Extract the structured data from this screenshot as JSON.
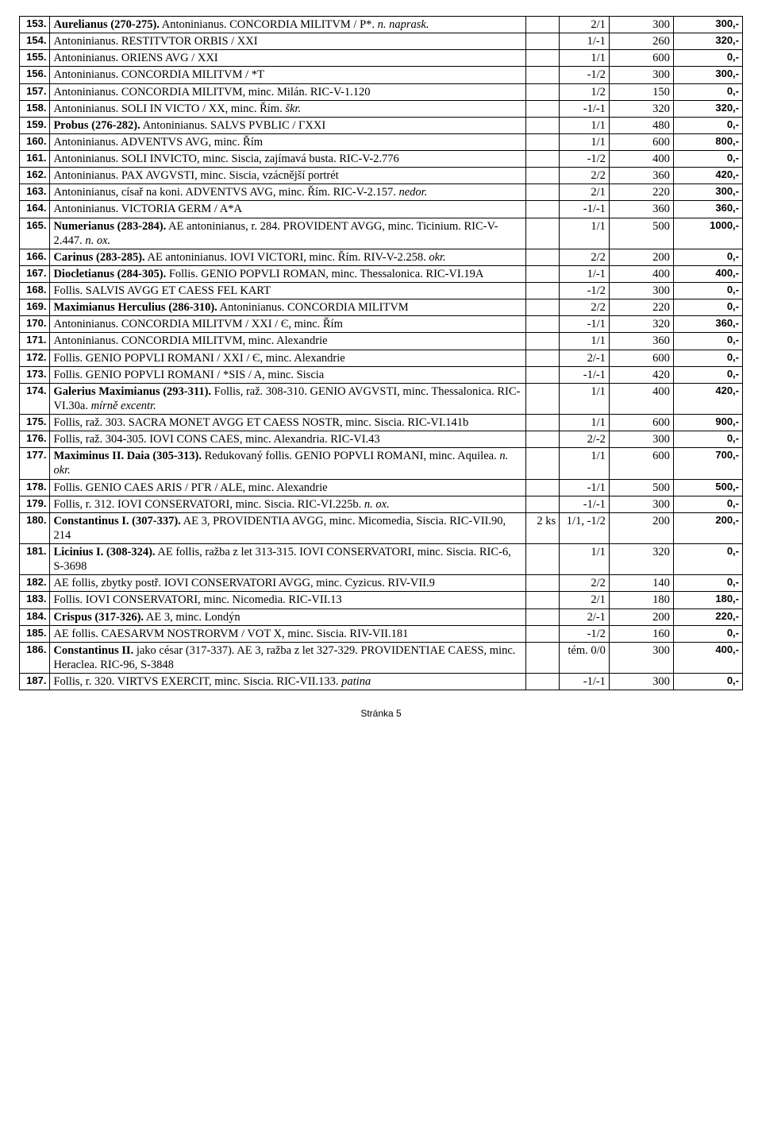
{
  "footer": "Stránka 5",
  "columns": [
    "num",
    "desc",
    "qty",
    "grade",
    "est",
    "hammer"
  ],
  "rows": [
    {
      "num": "153.",
      "desc": "<b>Aurelianus (270-275).</b> Antoninianus. CONCORDIA MILITVM / P*. <i>n. naprask.</i>",
      "qty": "",
      "grade": "2/1",
      "est": "300",
      "ham": "300,-"
    },
    {
      "num": "154.",
      "desc": "Antoninianus. RESTITVTOR ORBIS / XXI",
      "qty": "",
      "grade": "1/-1",
      "est": "260",
      "ham": "320,-"
    },
    {
      "num": "155.",
      "desc": "Antoninianus. ORIENS AVG / XXI",
      "qty": "",
      "grade": "1/1",
      "est": "600",
      "ham": "0,-"
    },
    {
      "num": "156.",
      "desc": "Antoninianus. CONCORDIA MILITVM / *T",
      "qty": "",
      "grade": "-1/2",
      "est": "300",
      "ham": "300,-"
    },
    {
      "num": "157.",
      "desc": "Antoninianus. CONCORDIA MILITVM, minc. Milán. RIC-V-1.120",
      "qty": "",
      "grade": "1/2",
      "est": "150",
      "ham": "0,-"
    },
    {
      "num": "158.",
      "desc": "Antoninianus. SOLI IN VICTO / XX, minc. Řím. <i>škr.</i>",
      "qty": "",
      "grade": "-1/-1",
      "est": "320",
      "ham": "320,-"
    },
    {
      "num": "159.",
      "desc": "<b>Probus (276-282).</b> Antoninianus. SALVS PVBLIC / ΓXXI",
      "qty": "",
      "grade": "1/1",
      "est": "480",
      "ham": "0,-"
    },
    {
      "num": "160.",
      "desc": "Antoninianus. ADVENTVS AVG, minc. Řím",
      "qty": "",
      "grade": "1/1",
      "est": "600",
      "ham": "800,-"
    },
    {
      "num": "161.",
      "desc": "Antoninianus. SOLI INVICTO, minc. Siscia, zajímavá busta. RIC-V-2.776",
      "qty": "",
      "grade": "-1/2",
      "est": "400",
      "ham": "0,-"
    },
    {
      "num": "162.",
      "desc": "Antoninianus. PAX AVGVSTI, minc. Siscia, vzácnější portrét",
      "qty": "",
      "grade": "2/2",
      "est": "360",
      "ham": "420,-"
    },
    {
      "num": "163.",
      "desc": "Antoninianus, císař na koni. ADVENTVS AVG, minc. Řím. RIC-V-2.157. <i>nedor.</i>",
      "qty": "",
      "grade": "2/1",
      "est": "220",
      "ham": "300,-"
    },
    {
      "num": "164.",
      "desc": "Antoninianus. VICTORIA GERM / A*A",
      "qty": "",
      "grade": "-1/-1",
      "est": "360",
      "ham": "360,-"
    },
    {
      "num": "165.",
      "desc": "<b>Numerianus (283-284).</b> AE antoninianus, r. 284. PROVIDENT AVGG, minc. Ticinium. RIC-V-2.447. <i>n. ox.</i>",
      "qty": "",
      "grade": "1/1",
      "est": "500",
      "ham": "1000,-"
    },
    {
      "num": "166.",
      "desc": "<b>Carinus (283-285).</b> AE antoninianus. IOVI VICTORI, minc. Řím. RIV-V-2.258. <i>okr.</i>",
      "qty": "",
      "grade": "2/2",
      "est": "200",
      "ham": "0,-"
    },
    {
      "num": "167.",
      "desc": "<b>Diocletianus (284-305).</b> Follis. GENIO POPVLI ROMAN, minc. Thessalonica. RIC-VI.19A",
      "qty": "",
      "grade": "1/-1",
      "est": "400",
      "ham": "400,-"
    },
    {
      "num": "168.",
      "desc": "Follis. SALVIS AVGG ET CAESS FEL KART",
      "qty": "",
      "grade": "-1/2",
      "est": "300",
      "ham": "0,-"
    },
    {
      "num": "169.",
      "desc": "<b>Maximianus Herculius (286-310).</b> Antoninianus. CONCORDIA MILITVM",
      "qty": "",
      "grade": "2/2",
      "est": "220",
      "ham": "0,-"
    },
    {
      "num": "170.",
      "desc": "Antoninianus. CONCORDIA MILITVM / XXI / Є, minc. Řím",
      "qty": "",
      "grade": "-1/1",
      "est": "320",
      "ham": "360,-"
    },
    {
      "num": "171.",
      "desc": "Antoninianus. CONCORDIA MILITVM, minc. Alexandrie",
      "qty": "",
      "grade": "1/1",
      "est": "360",
      "ham": "0,-"
    },
    {
      "num": "172.",
      "desc": "Follis. GENIO POPVLI ROMANI / XXI / Є, minc. Alexandrie",
      "qty": "",
      "grade": "2/-1",
      "est": "600",
      "ham": "0,-"
    },
    {
      "num": "173.",
      "desc": "Follis. GENIO POPVLI ROMANI / *SIS / A, minc. Siscia",
      "qty": "",
      "grade": "-1/-1",
      "est": "420",
      "ham": "0,-"
    },
    {
      "num": "174.",
      "desc": "<b>Galerius Maximianus (293-311).</b> Follis, raž. 308-310. GENIO AVGVSTI, minc. Thessalonica. RIC-VI.30a. <i>mírně excentr.</i>",
      "qty": "",
      "grade": "1/1",
      "est": "400",
      "ham": "420,-"
    },
    {
      "num": "175.",
      "desc": "Follis, raž. 303. SACRA MONET AVGG ET CAESS NOSTR, minc. Siscia. RIC-VI.141b",
      "qty": "",
      "grade": "1/1",
      "est": "600",
      "ham": "900,-"
    },
    {
      "num": "176.",
      "desc": "Follis, raž. 304-305. IOVI CONS CAES, minc. Alexandria. RIC-VI.43",
      "qty": "",
      "grade": "2/-2",
      "est": "300",
      "ham": "0,-"
    },
    {
      "num": "177.",
      "desc": "<b>Maximinus II. Daia (305-313).</b> Redukovaný follis. GENIO POPVLI ROMANI, minc. Aquilea. <i>n. okr.</i>",
      "qty": "",
      "grade": "1/1",
      "est": "600",
      "ham": "700,-"
    },
    {
      "num": "178.",
      "desc": "Follis. GENIO CAES ARIS / PΓR / ALE, minc. Alexandrie",
      "qty": "",
      "grade": "-1/1",
      "est": "500",
      "ham": "500,-"
    },
    {
      "num": "179.",
      "desc": "Follis, r. 312. IOVI CONSERVATORI, minc. Siscia. RIC-VI.225b. <i>n. ox.</i>",
      "qty": "",
      "grade": "-1/-1",
      "est": "300",
      "ham": "0,-"
    },
    {
      "num": "180.",
      "desc": "<b>Constantinus I. (307-337).</b> AE 3, PROVIDENTIA AVGG, minc. Micomedia, Siscia. RIC-VII.90, 214",
      "qty": "2 ks",
      "grade": "1/1, -1/2",
      "est": "200",
      "ham": "200,-"
    },
    {
      "num": "181.",
      "desc": "<b>Licinius I. (308-324).</b> AE follis, ražba z let 313-315. IOVI CONSERVATORI, minc. Siscia. RIC-6, S-3698",
      "qty": "",
      "grade": "1/1",
      "est": "320",
      "ham": "0,-"
    },
    {
      "num": "182.",
      "desc": "AE follis, zbytky postř. IOVI CONSERVATORI AVGG, minc. Cyzicus. RIV-VII.9",
      "qty": "",
      "grade": "2/2",
      "est": "140",
      "ham": "0,-"
    },
    {
      "num": "183.",
      "desc": "Follis. IOVI CONSERVATORI, minc. Nicomedia. RIC-VII.13",
      "qty": "",
      "grade": "2/1",
      "est": "180",
      "ham": "180,-"
    },
    {
      "num": "184.",
      "desc": "<b>Crispus (317-326).</b> AE 3, minc. Londýn",
      "qty": "",
      "grade": "2/-1",
      "est": "200",
      "ham": "220,-"
    },
    {
      "num": "185.",
      "desc": "AE follis. CAESARVM NOSTRORVM / VOT X, minc. Siscia. RIV-VII.181",
      "qty": "",
      "grade": "-1/2",
      "est": "160",
      "ham": "0,-"
    },
    {
      "num": "186.",
      "desc": "<b>Constantinus II.</b> jako césar (317-337). AE 3, ražba z let 327-329. PROVIDENTIAE CAESS, minc. Heraclea. RIC-96, S-3848",
      "qty": "",
      "grade": "tém. 0/0",
      "est": "300",
      "ham": "400,-"
    },
    {
      "num": "187.",
      "desc": "Follis, r. 320. VIRTVS EXERCIT, minc. Siscia. RIC-VII.133. <i>patina</i>",
      "qty": "",
      "grade": "-1/-1",
      "est": "300",
      "ham": "0,-"
    }
  ]
}
